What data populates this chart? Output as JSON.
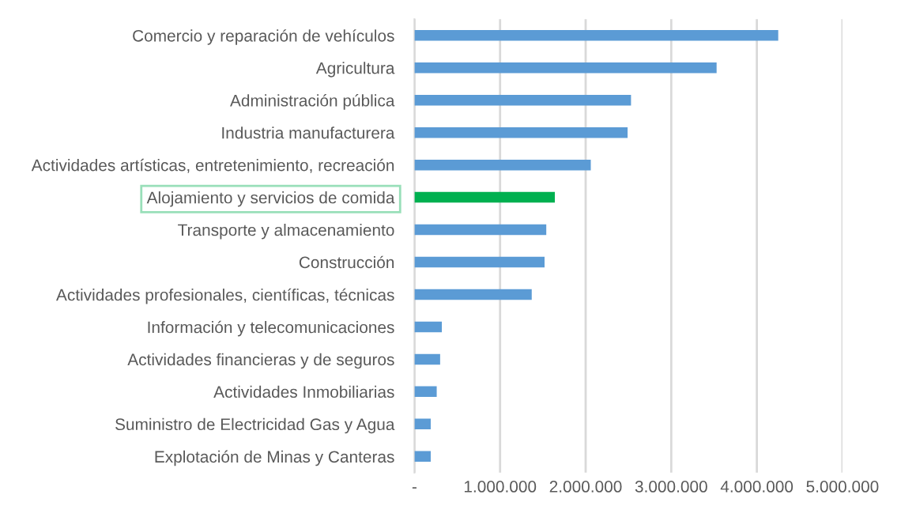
{
  "chart_data": {
    "type": "bar",
    "orientation": "horizontal",
    "categories": [
      "Comercio y reparación de vehículos",
      "Agricultura",
      "Administración pública",
      "Industria manufacturera",
      "Actividades artísticas, entretenimiento, recreación",
      "Alojamiento y servicios de comida",
      "Transporte y almacenamiento",
      "Construcción",
      "Actividades profesionales, científicas, técnicas",
      "Información y telecomunicaciones",
      "Actividades financieras y de seguros",
      "Actividades Inmobiliarias",
      "Suministro de Electricidad Gas y Agua",
      "Explotación de Minas y Canteras"
    ],
    "values": [
      4250000,
      3530000,
      2530000,
      2490000,
      2060000,
      1640000,
      1540000,
      1520000,
      1370000,
      320000,
      300000,
      260000,
      190000,
      190000
    ],
    "colors": [
      "#5b9bd5",
      "#5b9bd5",
      "#5b9bd5",
      "#5b9bd5",
      "#5b9bd5",
      "#00b050",
      "#5b9bd5",
      "#5b9bd5",
      "#5b9bd5",
      "#5b9bd5",
      "#5b9bd5",
      "#5b9bd5",
      "#5b9bd5",
      "#5b9bd5"
    ],
    "xlim": [
      0,
      5000000
    ],
    "xticks": [
      {
        "value": 0,
        "label": "-"
      },
      {
        "value": 1000000,
        "label": "1.000.000"
      },
      {
        "value": 2000000,
        "label": "2.000.000"
      },
      {
        "value": 3000000,
        "label": "3.000.000"
      },
      {
        "value": 4000000,
        "label": "4.000.000"
      },
      {
        "value": 5000000,
        "label": "5.000.000"
      }
    ],
    "grid": "x",
    "legend": false
  }
}
